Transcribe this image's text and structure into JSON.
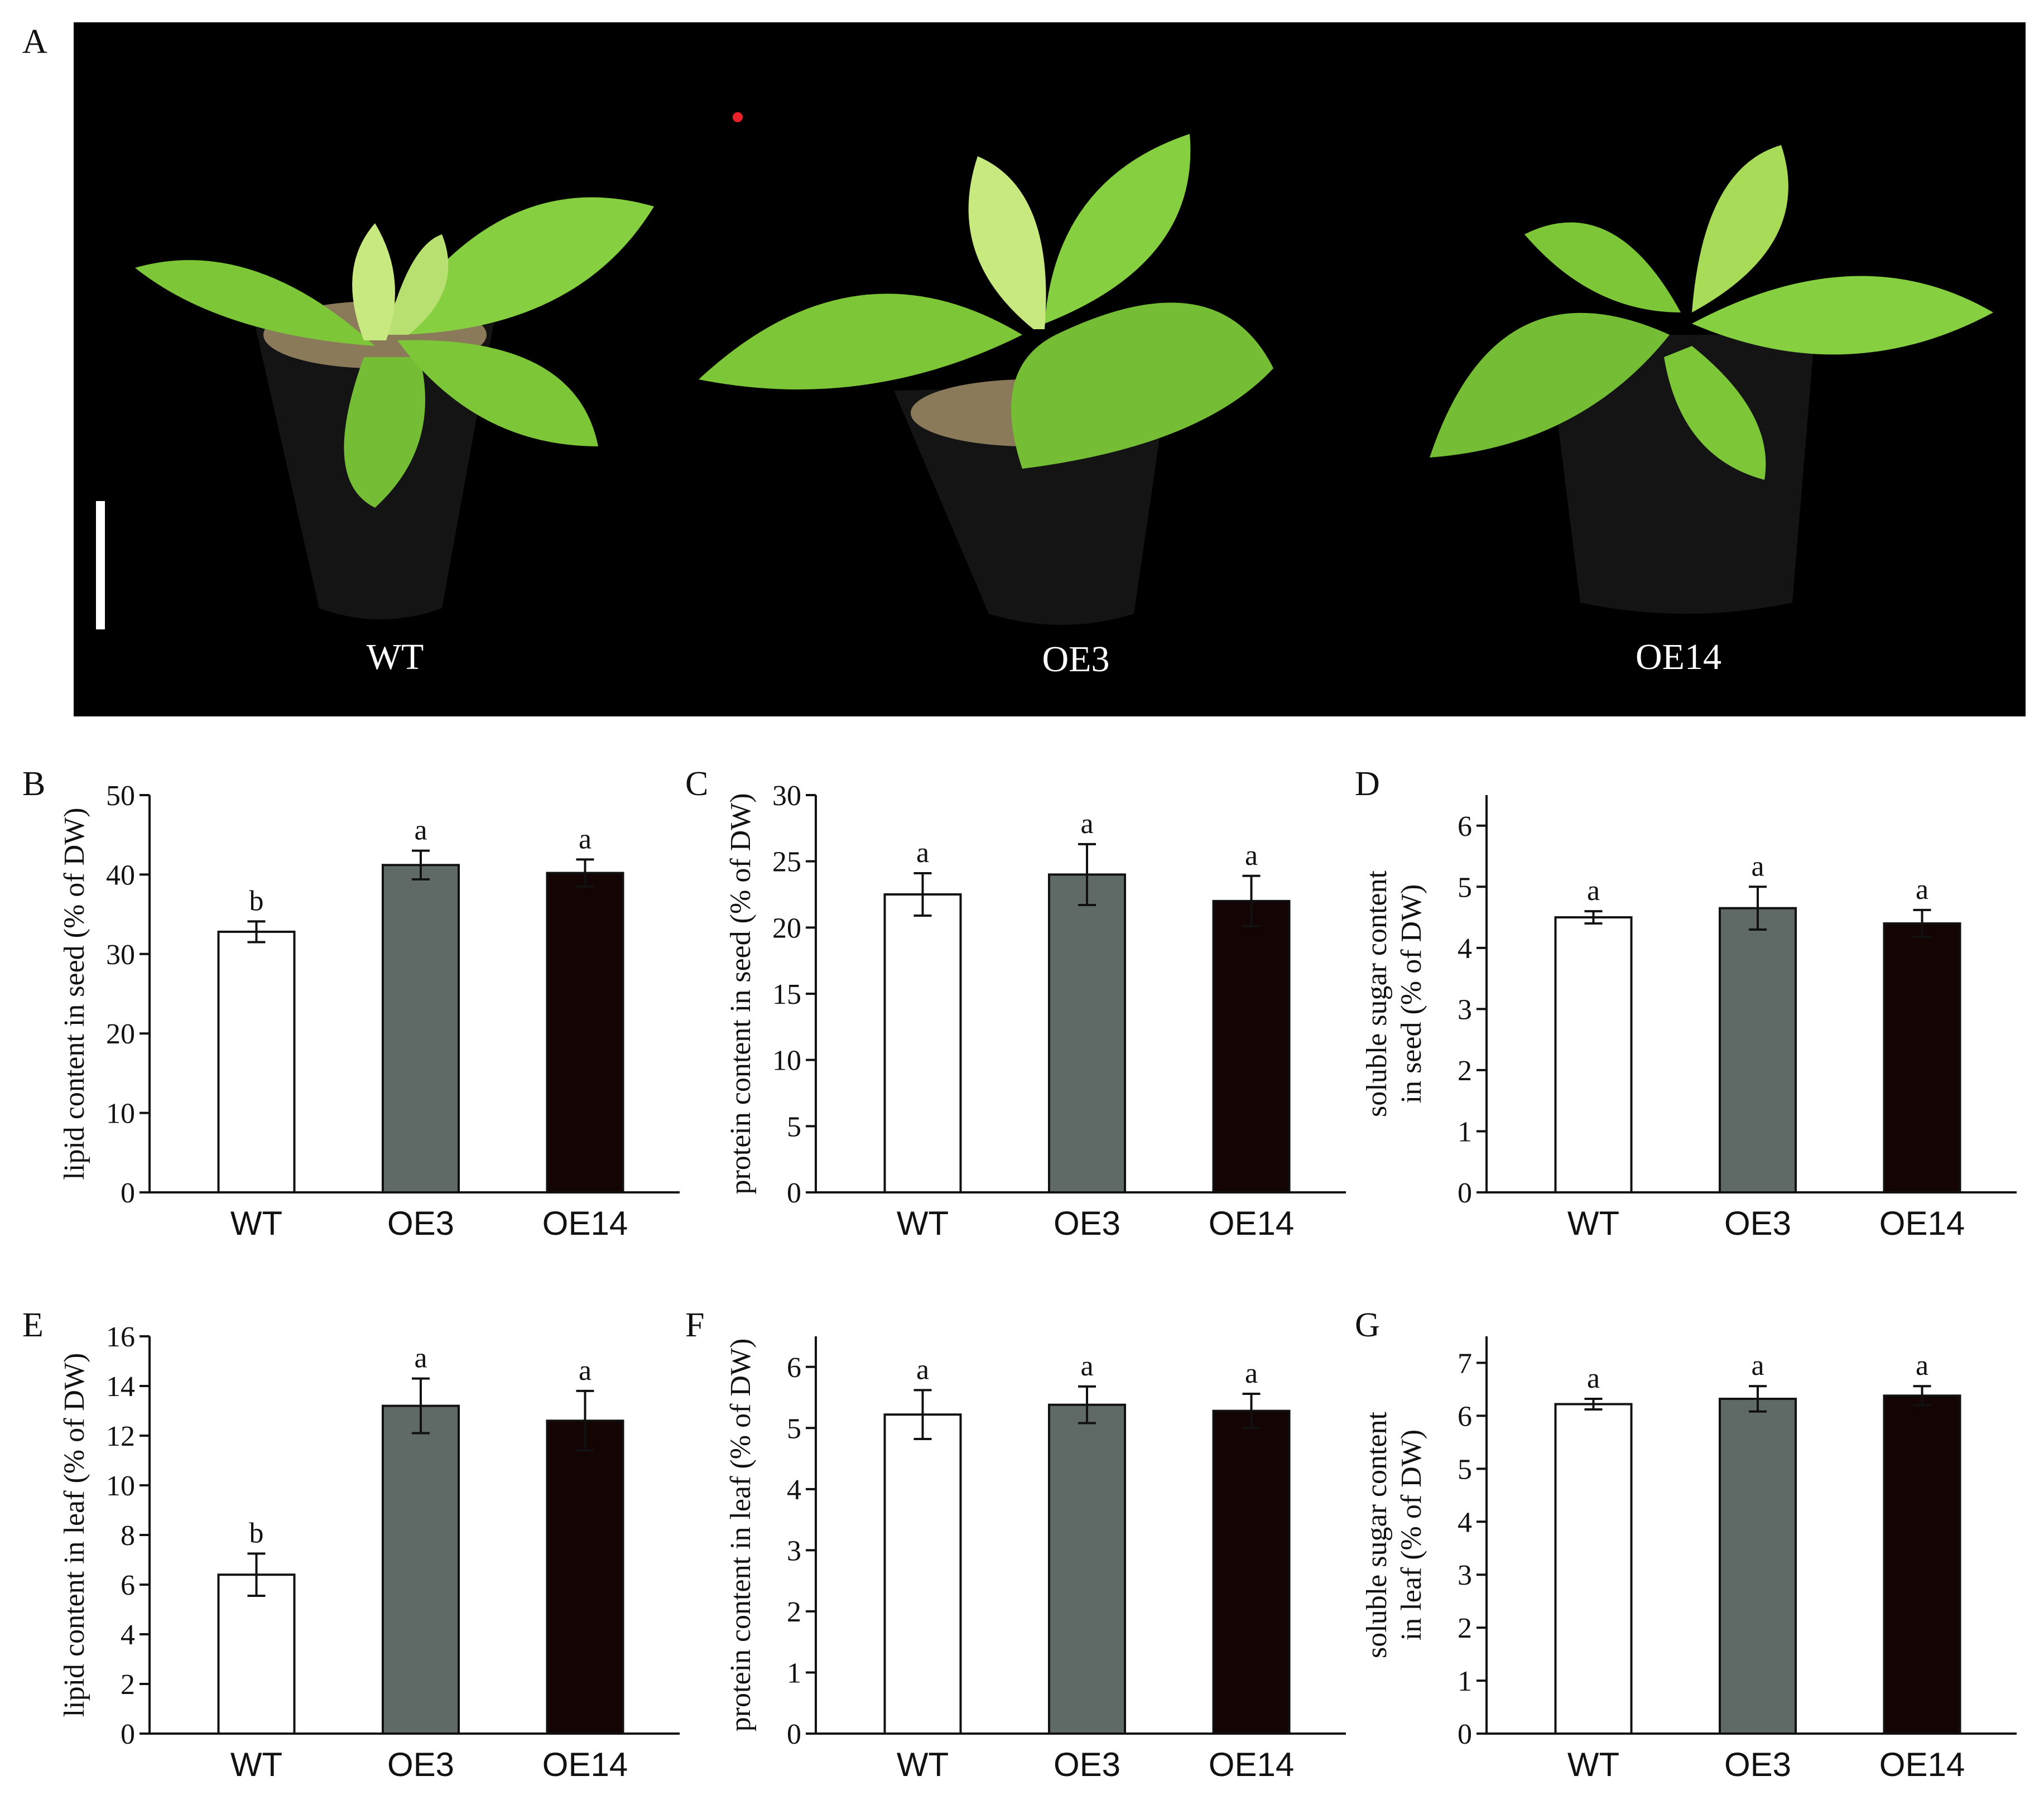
{
  "figure": {
    "panel_a_label": "A",
    "plant_labels": [
      "WT",
      "OE3",
      "OE14"
    ]
  },
  "colors": {
    "WT": "#ffffff",
    "OE3": "#5f6a66",
    "OE14": "#140404",
    "axis": "#111111",
    "photo_background": "#000000",
    "leaf": "#7cc638",
    "pot": "#141414",
    "scale_bar": "#ffffff",
    "dot": "#e8202a"
  },
  "chart_data": [
    {
      "panel": "B",
      "type": "bar",
      "categories": [
        "WT",
        "OE3",
        "OE14"
      ],
      "values": [
        32.8,
        41.2,
        40.2
      ],
      "errors": [
        1.3,
        1.8,
        1.7
      ],
      "significance": [
        "b",
        "a",
        "a"
      ],
      "ylabel": "lipid content in seed (% of DW)",
      "ylabel_lines": [
        "lipid content in seed (% of DW)"
      ],
      "ylim": [
        0,
        50
      ],
      "yticks": [
        0,
        10,
        20,
        30,
        40,
        50
      ]
    },
    {
      "panel": "C",
      "type": "bar",
      "categories": [
        "WT",
        "OE3",
        "OE14"
      ],
      "values": [
        22.5,
        24.0,
        22.0
      ],
      "errors": [
        1.6,
        2.3,
        1.9
      ],
      "significance": [
        "a",
        "a",
        "a"
      ],
      "ylabel": "protein content in seed (% of DW)",
      "ylabel_lines": [
        "protein content in seed (% of DW)"
      ],
      "ylim": [
        0,
        30
      ],
      "yticks": [
        0,
        5,
        10,
        15,
        20,
        25,
        30
      ]
    },
    {
      "panel": "D",
      "type": "bar",
      "categories": [
        "WT",
        "OE3",
        "OE14"
      ],
      "values": [
        4.5,
        4.65,
        4.4
      ],
      "errors": [
        0.1,
        0.35,
        0.22
      ],
      "significance": [
        "a",
        "a",
        "a"
      ],
      "ylabel": "soluble sugar content in seed (% of DW)",
      "ylabel_lines": [
        "soluble sugar content",
        "in seed (% of DW)"
      ],
      "ylim": [
        0,
        6.5
      ],
      "yticks": [
        0,
        1,
        2,
        3,
        4,
        5,
        6
      ]
    },
    {
      "panel": "E",
      "type": "bar",
      "categories": [
        "WT",
        "OE3",
        "OE14"
      ],
      "values": [
        6.4,
        13.2,
        12.6
      ],
      "errors": [
        0.85,
        1.1,
        1.2
      ],
      "significance": [
        "b",
        "a",
        "a"
      ],
      "ylabel": "lipid content in leaf (% of DW)",
      "ylabel_lines": [
        "lipid content in leaf (% of DW)"
      ],
      "ylim": [
        0,
        16
      ],
      "yticks": [
        0,
        2,
        4,
        6,
        8,
        10,
        12,
        14,
        16
      ]
    },
    {
      "panel": "F",
      "type": "bar",
      "categories": [
        "WT",
        "OE3",
        "OE14"
      ],
      "values": [
        5.22,
        5.38,
        5.28
      ],
      "errors": [
        0.4,
        0.3,
        0.28
      ],
      "significance": [
        "a",
        "a",
        "a"
      ],
      "ylabel": "protein content in leaf (% of DW)",
      "ylabel_lines": [
        "protein content in leaf (% of DW)"
      ],
      "ylim": [
        0,
        6.5
      ],
      "yticks": [
        0,
        1,
        2,
        3,
        4,
        5,
        6
      ]
    },
    {
      "panel": "G",
      "type": "bar",
      "categories": [
        "WT",
        "OE3",
        "OE14"
      ],
      "values": [
        6.22,
        6.32,
        6.38
      ],
      "errors": [
        0.1,
        0.24,
        0.18
      ],
      "significance": [
        "a",
        "a",
        "a"
      ],
      "ylabel": "soluble sugar content in leaf (% of DW)",
      "ylabel_lines": [
        "soluble sugar content",
        "in leaf (% of DW)"
      ],
      "ylim": [
        0,
        7.5
      ],
      "yticks": [
        0,
        1,
        2,
        3,
        4,
        5,
        6,
        7
      ]
    }
  ]
}
